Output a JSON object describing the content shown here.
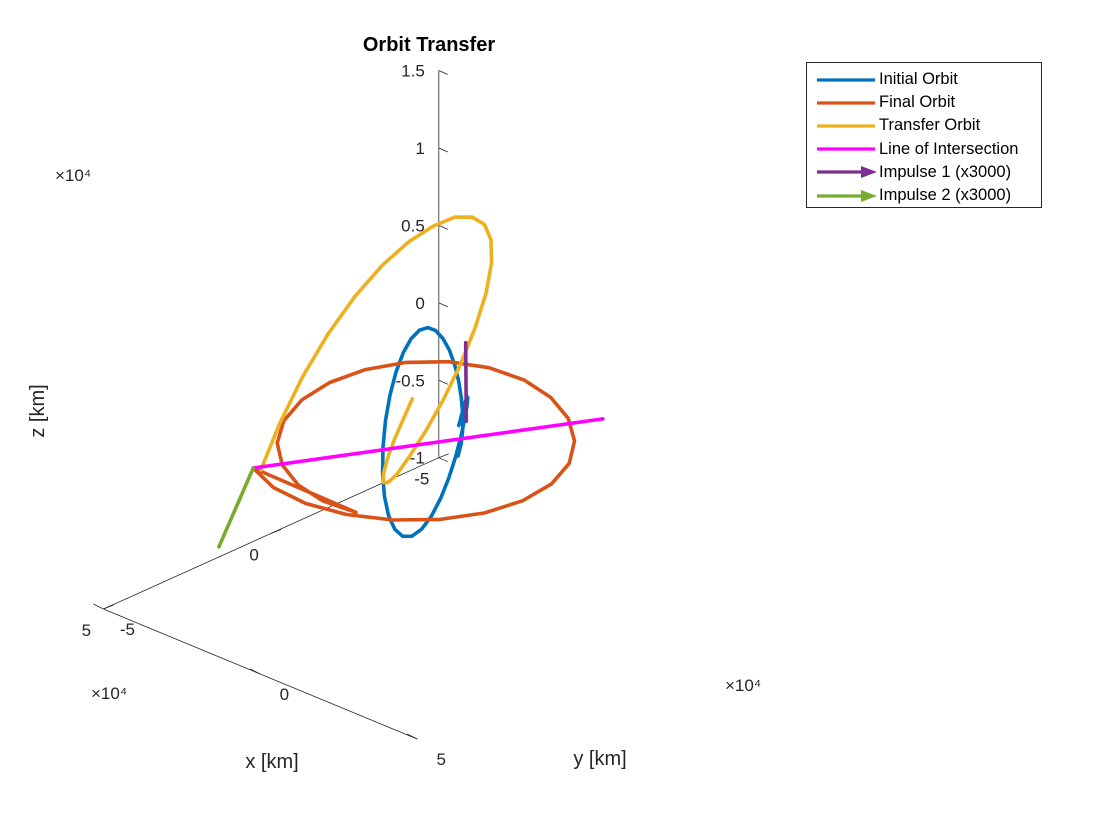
{
  "chart_data": {
    "type": "line",
    "title": "Orbit Transfer",
    "xlabel": "x [km]",
    "ylabel": "y [km]",
    "zlabel": "z [km]",
    "xlim": [
      -50000,
      50000
    ],
    "ylim": [
      -50000,
      50000
    ],
    "zlim": [
      -10000,
      15000
    ],
    "x_ticks": [
      "-5",
      "0",
      "5"
    ],
    "y_ticks": [
      "-5",
      "0",
      "5"
    ],
    "z_ticks": [
      "-1",
      "-0.5",
      "0",
      "0.5",
      "1",
      "1.5"
    ],
    "x_multiplier": "×10⁴",
    "y_multiplier": "×10⁴",
    "z_multiplier": "×10⁴",
    "grid": false,
    "legend_position": "top-right outside",
    "series": [
      {
        "name": "Initial Orbit",
        "color": "#0072BD",
        "x": [
          0,
          -1155,
          -2241,
          -3194,
          -3959,
          -4490,
          -4753,
          -4728,
          -4412,
          -3815,
          -2966,
          -1907,
          -688,
          617,
          1934,
          3172,
          4241,
          5062,
          5570,
          5722,
          5500,
          4913,
          3999,
          2819,
          1452,
          -1,
          -1424,
          -2717,
          -3783,
          -4535,
          -4918,
          -4902,
          -4496,
          -3740,
          -2710,
          -1500,
          -200
        ],
        "y": [
          9600,
          9340,
          8650,
          7630,
          6390,
          4980,
          3440,
          1790,
          80,
          -1620,
          -3260,
          -4780,
          -6130,
          -7260,
          -8140,
          -8730,
          -9000,
          -8930,
          -8520,
          -7760,
          -6680,
          -5330,
          -3780,
          -2130,
          -490,
          1070,
          2480,
          3720,
          4790,
          5700,
          6500,
          7210,
          7870,
          8480,
          9000,
          9390,
          9590
        ],
        "z": [
          0,
          670,
          1410,
          2220,
          3090,
          4000,
          4890,
          5700,
          6350,
          6780,
          6920,
          6730,
          6180,
          5300,
          4120,
          2710,
          1140,
          -500,
          -2090,
          -3520,
          -4690,
          -5510,
          -5920,
          -5890,
          -5430,
          -4600,
          -3480,
          -2180,
          -800,
          540,
          1710,
          2610,
          3170,
          3360,
          3190,
          2700,
          1950
        ]
      },
      {
        "name": "Final Orbit",
        "color": "#D95319",
        "x": [
          33400,
          37200,
          38100,
          36100,
          31400,
          24400,
          15800,
          6200,
          -3700,
          -13300,
          -21800,
          -28700,
          -33400,
          -35600,
          -34800,
          -31100,
          -24800,
          -16500,
          -7000,
          3000,
          12800,
          21400,
          28200,
          32800,
          34800,
          34000,
          33400
        ],
        "y": [
          -20000,
          -9500,
          1700,
          12600,
          22300,
          30000,
          35000,
          36800,
          35400,
          30800,
          23400,
          14000,
          3400,
          -7500,
          -17800,
          -26700,
          -33500,
          -37600,
          -38800,
          -37000,
          -32300,
          -25200,
          -16300,
          -6300,
          3800,
          13400,
          -20000
        ],
        "z": [
          0,
          0,
          0,
          0,
          0,
          0,
          0,
          0,
          0,
          0,
          0,
          0,
          0,
          0,
          0,
          0,
          0,
          0,
          0,
          0,
          0,
          0,
          0,
          0,
          0,
          0,
          0
        ]
      },
      {
        "name": "Transfer Orbit",
        "color": "#EDB120",
        "x": [
          33000,
          31000,
          27500,
          23000,
          17800,
          12300,
          6800,
          1700,
          -2800,
          -6400,
          -8800,
          -9800,
          -9300,
          -7300,
          -4100,
          -100,
          4300,
          8500,
          12100,
          14500,
          15500,
          15000,
          13000,
          9700,
          5400,
          500,
          -3000
        ],
        "y": [
          -18000,
          -14200,
          -10600,
          -7300,
          -4200,
          -1400,
          1200,
          3500,
          5500,
          7200,
          8600,
          9600,
          10300,
          10700,
          10700,
          10300,
          9600,
          8500,
          7200,
          5600,
          3800,
          1800,
          -300,
          -2500,
          -4700,
          -6800,
          -8200
        ],
        "z": [
          0,
          3100,
          6100,
          8700,
          10900,
          12600,
          13800,
          14500,
          14800,
          14600,
          14000,
          13000,
          11600,
          9900,
          8000,
          6000,
          4100,
          2400,
          1000,
          -100,
          -700,
          -900,
          -700,
          -200,
          500,
          1300,
          1900
        ]
      },
      {
        "name": "Line of Intersection",
        "color": "#FF00FF",
        "x": [
          33400,
          -33400
        ],
        "y": [
          -20000,
          20000
        ],
        "z": [
          0,
          0
        ]
      },
      {
        "name": "Impulse 1 (x3000)",
        "color": "#7E2F8E",
        "x": [
          -3000,
          -3300
        ],
        "y": [
          9000,
          8500
        ],
        "z": [
          1900,
          6900
        ]
      },
      {
        "name": "Impulse 2 (x3000)",
        "color": "#77AC30",
        "x": [
          33400,
          42500
        ],
        "y": [
          -20000,
          -21200
        ],
        "z": [
          0,
          -4300
        ]
      }
    ]
  }
}
